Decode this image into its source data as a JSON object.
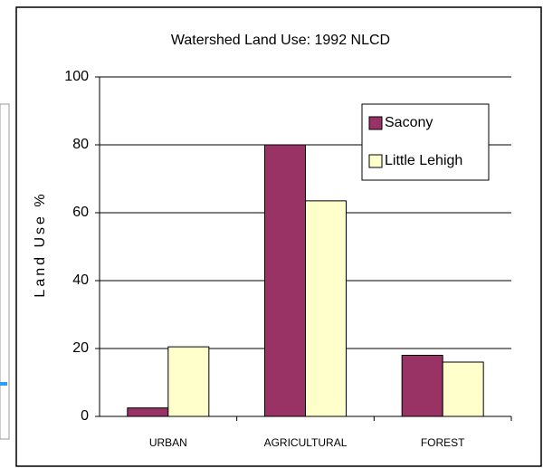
{
  "chart_data": {
    "type": "bar",
    "title": "Watershed Land Use: 1992 NLCD",
    "y_label": "Land Use %",
    "categories": [
      "URBAN",
      "AGRICULTURAL",
      "FOREST"
    ],
    "series": [
      {
        "name": "Sacony",
        "color": "#993366",
        "values": [
          2.5,
          80,
          18
        ]
      },
      {
        "name": "Little Lehigh",
        "color": "#ffffcc",
        "values": [
          20.5,
          63.5,
          16
        ]
      }
    ],
    "ylim": [
      0,
      100
    ],
    "yticks": [
      0,
      20,
      40,
      60,
      80,
      100
    ],
    "grid": true,
    "legend": "top-right"
  }
}
